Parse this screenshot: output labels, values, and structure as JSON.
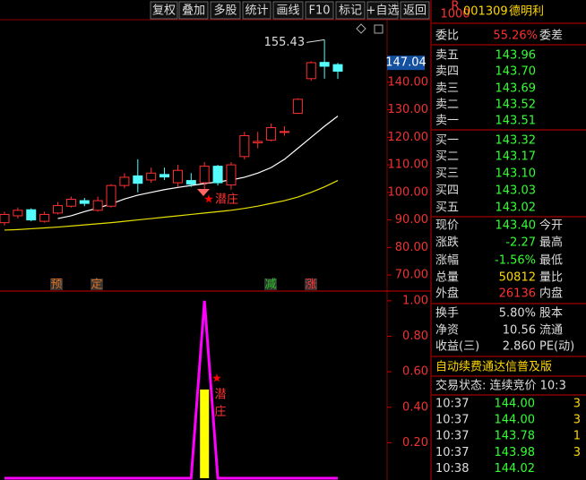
{
  "toolbar": {
    "buttons": [
      "复权",
      "叠加",
      "多股",
      "统计",
      "画线",
      "F10",
      "标记",
      "+自选",
      "返回"
    ]
  },
  "price_chart": {
    "yticks": [
      {
        "value": 140,
        "label": "140.00"
      },
      {
        "value": 130,
        "label": "130.00"
      },
      {
        "value": 120,
        "label": "120.00"
      },
      {
        "value": 110,
        "label": "110.00"
      },
      {
        "value": 100,
        "label": "100.00"
      },
      {
        "value": 90,
        "label": "90.00"
      },
      {
        "value": 80,
        "label": "80.00"
      },
      {
        "value": 70,
        "label": "70.00"
      }
    ],
    "ylim": [
      60.6,
      162.7
    ],
    "last_price_label": 147.04,
    "high_label": 155.43,
    "candles": [
      {
        "open": 89,
        "high": 93,
        "low": 88,
        "close": 92
      },
      {
        "open": 91.5,
        "high": 94.5,
        "low": 90.5,
        "close": 93.5
      },
      {
        "open": 93.7,
        "high": 94.2,
        "low": 89.5,
        "close": 90
      },
      {
        "open": 89.5,
        "high": 93,
        "low": 89,
        "close": 92
      },
      {
        "open": 92.5,
        "high": 96.5,
        "low": 92,
        "close": 95.2
      },
      {
        "open": 95,
        "high": 98.5,
        "low": 94.5,
        "close": 97.5
      },
      {
        "open": 97,
        "high": 98,
        "low": 95,
        "close": 96
      },
      {
        "open": 93.5,
        "high": 98.5,
        "low": 93,
        "close": 97
      },
      {
        "open": 95,
        "high": 103,
        "low": 94.5,
        "close": 102.5
      },
      {
        "open": 102.5,
        "high": 107,
        "low": 101.5,
        "close": 105.5
      },
      {
        "open": 106,
        "high": 112,
        "low": 100,
        "close": 103.3
      },
      {
        "open": 104.5,
        "high": 109,
        "low": 103.5,
        "close": 107
      },
      {
        "open": 106.5,
        "high": 109,
        "low": 104.5,
        "close": 105.6
      },
      {
        "open": 103.5,
        "high": 110,
        "low": 102,
        "close": 108
      },
      {
        "open": 104.3,
        "high": 107,
        "low": 102,
        "close": 103
      },
      {
        "open": 103.5,
        "high": 111,
        "low": 101,
        "close": 109.5
      },
      {
        "open": 109.5,
        "high": 110,
        "low": 102.5,
        "close": 103.5
      },
      {
        "open": 102.7,
        "high": 111,
        "low": 101,
        "close": 110
      },
      {
        "open": 113,
        "high": 122,
        "low": 112,
        "close": 120.6
      },
      {
        "open": 118,
        "high": 122,
        "low": 116,
        "close": 118.5
      },
      {
        "open": 119,
        "high": 125,
        "low": 118.5,
        "close": 123.5
      },
      {
        "open": 121.8,
        "high": 124,
        "low": 120.6,
        "close": 122.1
      },
      {
        "open": 128.7,
        "high": 134.2,
        "low": 128.5,
        "close": 133.8
      },
      {
        "open": 141.3,
        "high": 147.6,
        "low": 140.5,
        "close": 147.1
      },
      {
        "open": 147.2,
        "high": 155.43,
        "low": 141.3,
        "close": 145.8
      },
      {
        "open": 146.4,
        "high": 147,
        "low": 141.2,
        "close": 144
      }
    ],
    "ma_white": [
      null,
      null,
      null,
      null,
      90.5,
      91.5,
      93,
      94.3,
      95.8,
      97.6,
      99,
      100,
      101,
      101.8,
      102.5,
      103.2,
      103.8,
      104.5,
      105.5,
      107,
      109,
      112,
      116,
      120,
      124,
      127.7
    ],
    "ma_yellow": [
      86.3,
      86.5,
      86.8,
      87.1,
      87.4,
      87.8,
      88.2,
      88.6,
      89,
      89.5,
      90,
      90.5,
      91,
      91.5,
      92,
      92.5,
      93,
      93.5,
      94.2,
      95,
      96,
      97,
      98.3,
      100,
      102,
      104.3
    ],
    "signals": [
      "预",
      "定",
      "减",
      "涨"
    ],
    "annotation": "潜庄"
  },
  "indicator": {
    "yticks": [
      {
        "value": 1,
        "label": "1.00"
      },
      {
        "value": 0.8,
        "label": "0.80"
      },
      {
        "value": 0.6,
        "label": "0.60"
      },
      {
        "value": 0.4,
        "label": "0.40"
      },
      {
        "value": 0.2,
        "label": "0.20"
      }
    ],
    "ylim": [
      0,
      1.05
    ],
    "line": [
      0,
      0,
      0,
      0,
      0,
      0,
      0,
      0,
      0,
      0,
      0,
      0,
      0,
      0,
      0,
      1,
      0,
      0,
      0,
      0,
      0,
      0,
      0,
      0,
      0,
      0
    ],
    "bars": [
      null,
      null,
      null,
      null,
      null,
      null,
      null,
      null,
      null,
      null,
      null,
      null,
      null,
      null,
      null,
      0.5,
      null,
      null,
      null,
      null,
      null,
      null,
      null,
      null,
      null,
      null
    ],
    "annotation_chars": [
      "潜",
      "庄"
    ]
  },
  "quote": {
    "header": {
      "badge_top": "R",
      "badge_bottom": "1000",
      "code": "001309",
      "name": "德明利"
    },
    "weibi": {
      "label": "委比",
      "value": "55.26%",
      "label2": "委差"
    },
    "sell": [
      {
        "label": "卖五",
        "price": "143.96"
      },
      {
        "label": "卖四",
        "price": "143.70"
      },
      {
        "label": "卖三",
        "price": "143.69"
      },
      {
        "label": "卖二",
        "price": "143.52"
      },
      {
        "label": "卖一",
        "price": "143.51"
      }
    ],
    "buy": [
      {
        "label": "买一",
        "price": "143.32"
      },
      {
        "label": "买二",
        "price": "143.17"
      },
      {
        "label": "买三",
        "price": "143.10"
      },
      {
        "label": "买四",
        "price": "143.03"
      },
      {
        "label": "买五",
        "price": "143.02"
      }
    ],
    "stats": [
      {
        "label": "现价",
        "value": "143.40",
        "label2": "今开"
      },
      {
        "label": "涨跌",
        "value": "-2.27",
        "label2": "最高"
      },
      {
        "label": "涨幅",
        "value": "-1.56%",
        "label2": "最低"
      },
      {
        "label": "总量",
        "value": "50812",
        "label2": "量比"
      },
      {
        "label": "外盘",
        "value": "26136",
        "label2": "内盘"
      }
    ],
    "stats2": [
      {
        "label": "换手",
        "value": "5.80%",
        "label2": "股本"
      },
      {
        "label": "净资",
        "value": "10.56",
        "label2": "流通"
      },
      {
        "label": "收益(三)",
        "value": "2.860",
        "label2": "PE(动)"
      }
    ],
    "banner": "自动续费通达信普及版",
    "status": "交易状态: 连续竞价 10:3",
    "ticks": [
      {
        "time": "10:37",
        "price": "144.00",
        "vol": "3"
      },
      {
        "time": "10:37",
        "price": "144.00",
        "vol": "3"
      },
      {
        "time": "10:37",
        "price": "143.78",
        "vol": "1"
      },
      {
        "time": "10:37",
        "price": "143.98",
        "vol": "3"
      },
      {
        "time": "10:38",
        "price": "144.02"
      }
    ]
  }
}
